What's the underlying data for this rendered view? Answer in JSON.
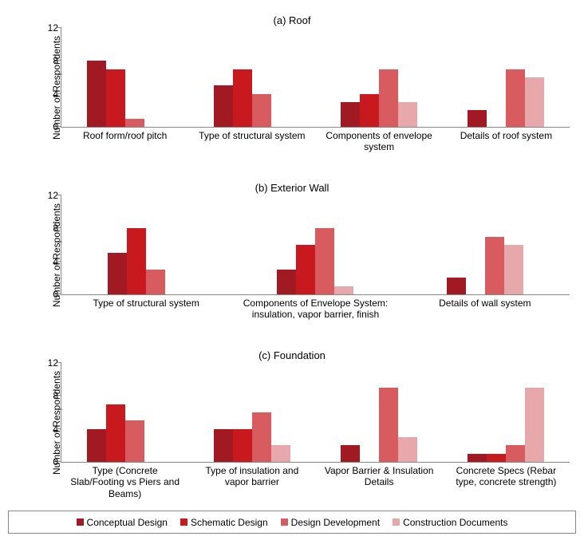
{
  "yAxis": {
    "label": "Number of Respondents",
    "min": 0,
    "max": 12,
    "step": 4,
    "labelFontsize": 12
  },
  "series": [
    {
      "name": "Conceptual Design",
      "color": "#a01923"
    },
    {
      "name": "Schematic Design",
      "color": "#c8191e"
    },
    {
      "name": "Design Development",
      "color": "#d85b5f"
    },
    {
      "name": "Construction Documents",
      "color": "#e6a8aa"
    }
  ],
  "panels": [
    {
      "subtitle": "(a) Roof",
      "groups": [
        {
          "label": "Roof form/roof pitch",
          "values": [
            8,
            7,
            1,
            0
          ]
        },
        {
          "label": "Type of structural system",
          "values": [
            5,
            7,
            4,
            0
          ]
        },
        {
          "label": "Components of envelope system",
          "values": [
            3,
            4,
            7,
            3
          ]
        },
        {
          "label": "Details of roof system",
          "values": [
            2,
            0,
            7,
            6
          ]
        }
      ]
    },
    {
      "subtitle": "(b) Exterior Wall",
      "groups": [
        {
          "label": "Type of structural system",
          "values": [
            5,
            8,
            3,
            0
          ]
        },
        {
          "label": "Components of Envelope System: insulation, vapor barrier, finish",
          "values": [
            3,
            6,
            8,
            1
          ]
        },
        {
          "label": "Details of wall system",
          "values": [
            2,
            0,
            7,
            6
          ]
        }
      ]
    },
    {
      "subtitle": "(c) Foundation",
      "groups": [
        {
          "label": "Type (Concrete Slab/Footing vs Piers and Beams)",
          "values": [
            4,
            7,
            5,
            0
          ]
        },
        {
          "label": "Type of insulation and vapor barrier",
          "values": [
            4,
            4,
            6,
            2
          ]
        },
        {
          "label": "Vapor Barrier & Insulation Details",
          "values": [
            2,
            0,
            9,
            3
          ]
        },
        {
          "label": "Concrete Specs (Rebar type, concrete strength)",
          "values": [
            1,
            1,
            2,
            9
          ]
        }
      ]
    }
  ],
  "style": {
    "background": "#ffffff",
    "axisColor": "#888888",
    "barWidth": 24,
    "fontFamily": "Arial, sans-serif",
    "tickFontsize": 12,
    "groupLabelFontsize": 12,
    "subtitleFontsize": 13
  }
}
